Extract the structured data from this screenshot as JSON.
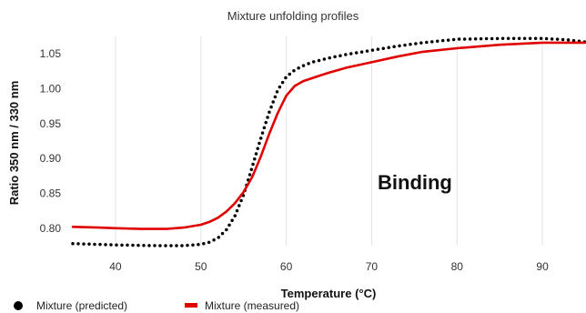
{
  "chart_data": {
    "type": "line",
    "title": "Mixture unfolding profiles",
    "xlabel": "Temperature (°C)",
    "ylabel": "Ratio 350 nm / 330 nm",
    "xlim": [
      35,
      95
    ],
    "ylim": [
      0.775,
      1.075
    ],
    "xticks": [
      40,
      50,
      60,
      70,
      80,
      90
    ],
    "yticks": [
      0.8,
      0.85,
      0.9,
      0.95,
      1.0,
      1.05
    ],
    "grid": "vertical",
    "legend_position": "bottom-left",
    "annotation": "Binding",
    "series": [
      {
        "name": "Mixture (predicted)",
        "style": "dotted",
        "color": "#000000",
        "x": [
          35,
          40,
          45,
          48,
          50,
          51,
          52,
          53,
          54,
          55,
          56,
          57,
          58,
          59,
          60,
          61,
          62,
          63,
          64,
          65,
          67,
          70,
          73,
          76,
          80,
          85,
          90,
          93,
          95
        ],
        "y": [
          0.778,
          0.776,
          0.775,
          0.775,
          0.777,
          0.78,
          0.786,
          0.798,
          0.818,
          0.848,
          0.887,
          0.928,
          0.966,
          0.998,
          1.017,
          1.027,
          1.033,
          1.038,
          1.041,
          1.044,
          1.049,
          1.055,
          1.061,
          1.066,
          1.071,
          1.072,
          1.072,
          1.07,
          1.067
        ]
      },
      {
        "name": "Mixture (measured)",
        "style": "solid",
        "color": "#e00000",
        "x": [
          35,
          38,
          40,
          43,
          46,
          48,
          50,
          51,
          52,
          53,
          54,
          55,
          56,
          57,
          58,
          59,
          60,
          61,
          62,
          63,
          64,
          65,
          67,
          70,
          73,
          76,
          80,
          85,
          90,
          95
        ],
        "y": [
          0.802,
          0.801,
          0.8,
          0.799,
          0.799,
          0.801,
          0.805,
          0.809,
          0.815,
          0.824,
          0.836,
          0.852,
          0.873,
          0.902,
          0.935,
          0.965,
          0.99,
          1.004,
          1.011,
          1.015,
          1.019,
          1.023,
          1.03,
          1.038,
          1.046,
          1.053,
          1.058,
          1.063,
          1.066,
          1.066
        ]
      }
    ]
  }
}
